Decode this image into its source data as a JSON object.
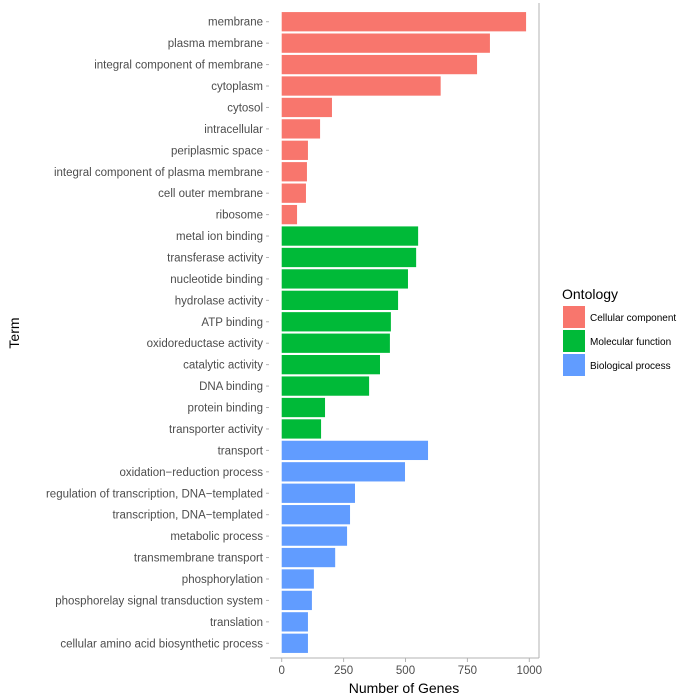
{
  "chart_data": {
    "type": "bar",
    "orientation": "horizontal",
    "title": "",
    "xlabel": "Number of Genes",
    "ylabel": "Term",
    "xlim": [
      0,
      1000
    ],
    "xticks": [
      0,
      250,
      500,
      750,
      1000
    ],
    "xtick_labels": [
      "0",
      "250",
      "500",
      "750",
      "1000"
    ],
    "grid": false,
    "legend": {
      "title": "Ontology",
      "placement": "right",
      "entries": [
        {
          "name": "Cellular component",
          "color": "#F8766D"
        },
        {
          "name": "Molecular function",
          "color": "#00BA38"
        },
        {
          "name": "Biological process",
          "color": "#619CFF"
        }
      ]
    },
    "bars": [
      {
        "term": "membrane",
        "value": 987,
        "ontology": "Cellular component"
      },
      {
        "term": "plasma membrane",
        "value": 841,
        "ontology": "Cellular component"
      },
      {
        "term": "integral component of membrane",
        "value": 789,
        "ontology": "Cellular component"
      },
      {
        "term": "cytoplasm",
        "value": 642,
        "ontology": "Cellular component"
      },
      {
        "term": "cytosol",
        "value": 203,
        "ontology": "Cellular component"
      },
      {
        "term": "intracellular",
        "value": 155,
        "ontology": "Cellular component"
      },
      {
        "term": "periplasmic space",
        "value": 106,
        "ontology": "Cellular component"
      },
      {
        "term": "integral component of plasma membrane",
        "value": 102,
        "ontology": "Cellular component"
      },
      {
        "term": "cell outer membrane",
        "value": 98,
        "ontology": "Cellular component"
      },
      {
        "term": "ribosome",
        "value": 62,
        "ontology": "Cellular component"
      },
      {
        "term": "metal ion binding",
        "value": 551,
        "ontology": "Molecular function"
      },
      {
        "term": "transferase activity",
        "value": 543,
        "ontology": "Molecular function"
      },
      {
        "term": "nucleotide binding",
        "value": 510,
        "ontology": "Molecular function"
      },
      {
        "term": "hydrolase activity",
        "value": 470,
        "ontology": "Molecular function"
      },
      {
        "term": "ATP binding",
        "value": 441,
        "ontology": "Molecular function"
      },
      {
        "term": "oxidoreductase activity",
        "value": 437,
        "ontology": "Molecular function"
      },
      {
        "term": "catalytic activity",
        "value": 397,
        "ontology": "Molecular function"
      },
      {
        "term": "DNA binding",
        "value": 353,
        "ontology": "Molecular function"
      },
      {
        "term": "protein binding",
        "value": 175,
        "ontology": "Molecular function"
      },
      {
        "term": "transporter activity",
        "value": 159,
        "ontology": "Molecular function"
      },
      {
        "term": "transport",
        "value": 591,
        "ontology": "Biological process"
      },
      {
        "term": "oxidation−reduction process",
        "value": 498,
        "ontology": "Biological process"
      },
      {
        "term": "regulation of transcription, DNA−templated",
        "value": 296,
        "ontology": "Biological process"
      },
      {
        "term": "transcription, DNA−templated",
        "value": 276,
        "ontology": "Biological process"
      },
      {
        "term": "metabolic process",
        "value": 264,
        "ontology": "Biological process"
      },
      {
        "term": "transmembrane transport",
        "value": 216,
        "ontology": "Biological process"
      },
      {
        "term": "phosphorylation",
        "value": 130,
        "ontology": "Biological process"
      },
      {
        "term": "phosphorelay signal transduction system",
        "value": 122,
        "ontology": "Biological process"
      },
      {
        "term": "translation",
        "value": 106,
        "ontology": "Biological process"
      },
      {
        "term": "cellular amino acid biosynthetic process",
        "value": 106,
        "ontology": "Biological process"
      }
    ]
  }
}
